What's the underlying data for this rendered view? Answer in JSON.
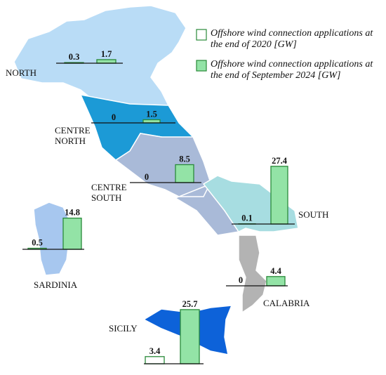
{
  "chart_data": {
    "type": "bar",
    "categories": [
      "NORTH",
      "CENTRE NORTH",
      "CENTRE SOUTH",
      "SOUTH",
      "SARDINIA",
      "CALABRIA",
      "SICILY"
    ],
    "series": [
      {
        "name": "Offshore wind connection applications at the end of 2020 [GW]",
        "color": "#ffffff",
        "values": [
          0.3,
          0,
          0,
          0.1,
          0.5,
          0,
          3.4
        ]
      },
      {
        "name": "Offshore wind connection applications at the end of September 2024 [GW]",
        "color": "#93e3a6",
        "values": [
          1.7,
          1.5,
          8.5,
          27.4,
          14.8,
          4.4,
          25.7
        ]
      }
    ],
    "edge_color": "#2a8a3a"
  }
}
